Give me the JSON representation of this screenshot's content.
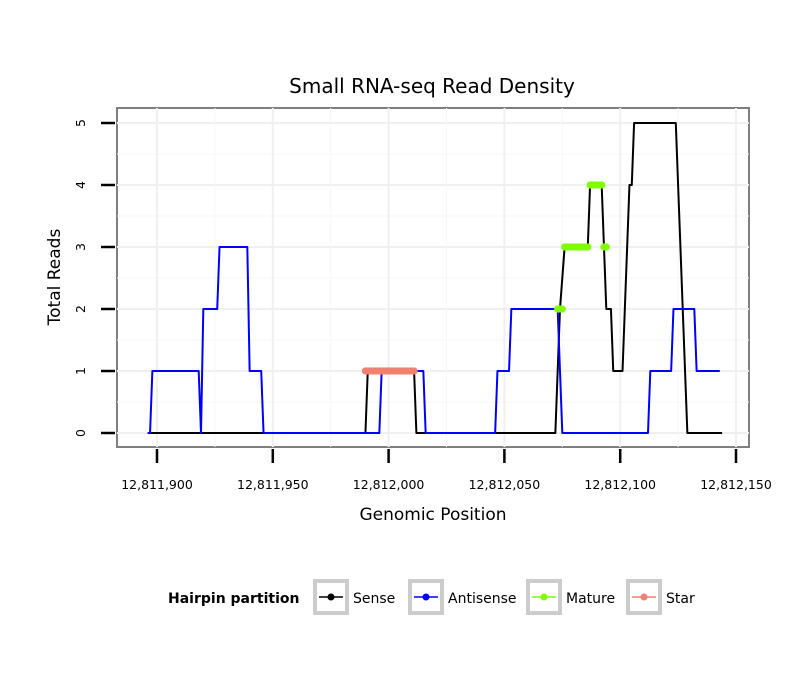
{
  "chart_data": {
    "type": "line",
    "title": "Small RNA-seq Read Density",
    "xlabel": "Genomic Position",
    "ylabel": "Total Reads",
    "xlim": [
      12811880,
      12812150
    ],
    "ylim": [
      -0.2,
      5.25
    ],
    "xticks": [
      12811900,
      12811950,
      12812000,
      12812050,
      12812100,
      12812150
    ],
    "xtick_labels": [
      "12,811,900",
      "12,811,950",
      "12,812,000",
      "12,812,050",
      "12,812,100",
      "12,812,150"
    ],
    "yticks": [
      0,
      1,
      2,
      3,
      4,
      5
    ],
    "ytick_labels": [
      "0",
      "1",
      "2",
      "3",
      "4",
      "5"
    ],
    "grid": true,
    "legend": {
      "title": "Hairpin partition",
      "placement": "bottom",
      "entries": [
        {
          "name": "Sense",
          "color": "#000000"
        },
        {
          "name": "Antisense",
          "color": "#0000ff"
        },
        {
          "name": "Mature",
          "color": "#7fff00"
        },
        {
          "name": "Star",
          "color": "#f08070"
        }
      ]
    },
    "series": [
      {
        "name": "Sense",
        "color": "#000000",
        "style": "line",
        "points": [
          [
            12811896,
            0
          ],
          [
            12811990,
            0
          ],
          [
            12811991,
            1
          ],
          [
            12812011,
            1
          ],
          [
            12812012,
            0
          ],
          [
            12812072,
            0
          ],
          [
            12812073,
            1
          ],
          [
            12812074,
            2
          ],
          [
            12812076,
            3
          ],
          [
            12812086,
            3
          ],
          [
            12812087,
            4
          ],
          [
            12812092,
            4
          ],
          [
            12812094,
            2
          ],
          [
            12812096,
            2
          ],
          [
            12812097,
            1
          ],
          [
            12812101,
            1
          ],
          [
            12812102,
            2
          ],
          [
            12812103,
            3
          ],
          [
            12812104,
            4
          ],
          [
            12812105,
            4
          ],
          [
            12812106,
            5
          ],
          [
            12812124,
            5
          ],
          [
            12812125,
            4
          ],
          [
            12812126,
            3
          ],
          [
            12812127,
            2
          ],
          [
            12812128,
            1
          ],
          [
            12812129,
            0
          ],
          [
            12812144,
            0
          ]
        ]
      },
      {
        "name": "Antisense",
        "color": "#0000ff",
        "style": "line",
        "points": [
          [
            12811896,
            0
          ],
          [
            12811897,
            0
          ],
          [
            12811898,
            1
          ],
          [
            12811918,
            1
          ],
          [
            12811919,
            0
          ],
          [
            12811920,
            2
          ],
          [
            12811926,
            2
          ],
          [
            12811927,
            3
          ],
          [
            12811939,
            3
          ],
          [
            12811940,
            1
          ],
          [
            12811945,
            1
          ],
          [
            12811946,
            0
          ],
          [
            12811996,
            0
          ],
          [
            12811997,
            1
          ],
          [
            12812015,
            1
          ],
          [
            12812016,
            0
          ],
          [
            12812046,
            0
          ],
          [
            12812047,
            1
          ],
          [
            12812052,
            1
          ],
          [
            12812053,
            2
          ],
          [
            12812073,
            2
          ],
          [
            12812075,
            0
          ],
          [
            12812112,
            0
          ],
          [
            12812113,
            1
          ],
          [
            12812122,
            1
          ],
          [
            12812123,
            2
          ],
          [
            12812132,
            2
          ],
          [
            12812133,
            1
          ],
          [
            12812143,
            1
          ]
        ]
      },
      {
        "name": "Mature",
        "color": "#7fff00",
        "style": "points",
        "points": [
          [
            12812073,
            2
          ],
          [
            12812074,
            2
          ],
          [
            12812075,
            2
          ],
          [
            12812076,
            3
          ],
          [
            12812077,
            3
          ],
          [
            12812078,
            3
          ],
          [
            12812079,
            3
          ],
          [
            12812080,
            3
          ],
          [
            12812081,
            3
          ],
          [
            12812082,
            3
          ],
          [
            12812083,
            3
          ],
          [
            12812084,
            3
          ],
          [
            12812085,
            3
          ],
          [
            12812086,
            3
          ],
          [
            12812087,
            4
          ],
          [
            12812088,
            4
          ],
          [
            12812089,
            4
          ],
          [
            12812090,
            4
          ],
          [
            12812091,
            4
          ],
          [
            12812092,
            4
          ],
          [
            12812093,
            3
          ],
          [
            12812094,
            3
          ]
        ]
      },
      {
        "name": "Star",
        "color": "#f08070",
        "style": "points",
        "points": [
          [
            12811990,
            1
          ],
          [
            12811991,
            1
          ],
          [
            12811992,
            1
          ],
          [
            12811993,
            1
          ],
          [
            12811994,
            1
          ],
          [
            12811995,
            1
          ],
          [
            12811996,
            1
          ],
          [
            12811997,
            1
          ],
          [
            12811998,
            1
          ],
          [
            12811999,
            1
          ],
          [
            12812000,
            1
          ],
          [
            12812001,
            1
          ],
          [
            12812002,
            1
          ],
          [
            12812003,
            1
          ],
          [
            12812004,
            1
          ],
          [
            12812005,
            1
          ],
          [
            12812006,
            1
          ],
          [
            12812007,
            1
          ],
          [
            12812008,
            1
          ],
          [
            12812009,
            1
          ],
          [
            12812010,
            1
          ],
          [
            12812011,
            1
          ]
        ]
      }
    ]
  }
}
